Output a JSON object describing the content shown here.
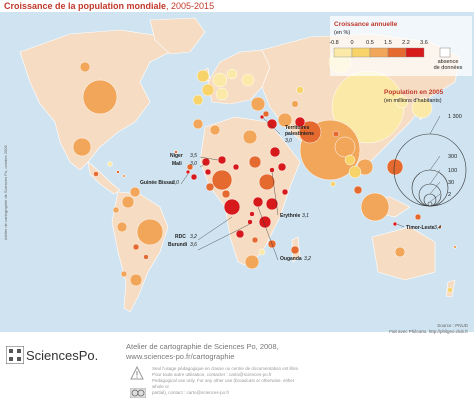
{
  "title": {
    "bold": "Croissance de la population mondiale",
    "period": ", 2005-2015"
  },
  "legend_growth": {
    "title": "Croissance annuelle",
    "unit": "(en %)",
    "ticks": [
      "-0.8",
      "0",
      "0.5",
      "1.5",
      "2.2",
      "3.6"
    ],
    "classes": [
      {
        "from": -0.8,
        "to": 0,
        "color": "#fbe9a8"
      },
      {
        "from": 0,
        "to": 0.5,
        "color": "#f7d36a"
      },
      {
        "from": 0.5,
        "to": 1.5,
        "color": "#f2a65a"
      },
      {
        "from": 1.5,
        "to": 2.2,
        "color": "#e56a30"
      },
      {
        "from": 2.2,
        "to": 3.6,
        "color": "#d7191c"
      }
    ],
    "nodata_label_1": "absence",
    "nodata_label_2": "de données",
    "nodata_color": "#ffffff"
  },
  "legend_pop": {
    "title": "Population en 2005",
    "unit": "(en millions d'habitants)",
    "values": [
      "1 300",
      "300",
      "100",
      "30",
      "2"
    ]
  },
  "labels": {
    "territoires_1": "Territoires",
    "territoires_2": "palestiniens",
    "territoires_val": "3,0",
    "niger": "Niger",
    "niger_val": "3,5",
    "mali": "Mali",
    "mali_val": "3,0",
    "guinee": "Guinée Bissau",
    "guinee_val": "3,0",
    "rdc": "RDC",
    "rdc_val": "3,2",
    "burundi": "Burundi",
    "burundi_val": "3,6",
    "erythree": "Erythrée",
    "erythree_val": "3,1",
    "ouganda": "Ouganda",
    "ouganda_val": "3,2",
    "timor": "Timor-Leste",
    "timor_val": "3,4"
  },
  "source": {
    "line1": "Source : PNUD",
    "line2": "Fait avec Philcarto. http://philgeo.club.fr"
  },
  "credit_vertical": "Atelier de cartographie de Sciences Po, octobre 2006",
  "footer": {
    "logo": "SciencesPo.",
    "atelier_1": "Atelier de cartographie de Sciences Po, 2008,",
    "atelier_2": "www.sciences-po.fr/cartographie",
    "legal_1": "Seul l'usage pédagogique en classe ou centre de documentation est libre.",
    "legal_2": "Pour toute autre utilisation, contacter : carto@sciences-po.fr",
    "legal_3": "Pedagogical use only. For any other use (broadcast or otherwise, either whole or",
    "legal_4": "partial), contact : carto@sciences-po.fr"
  }
}
